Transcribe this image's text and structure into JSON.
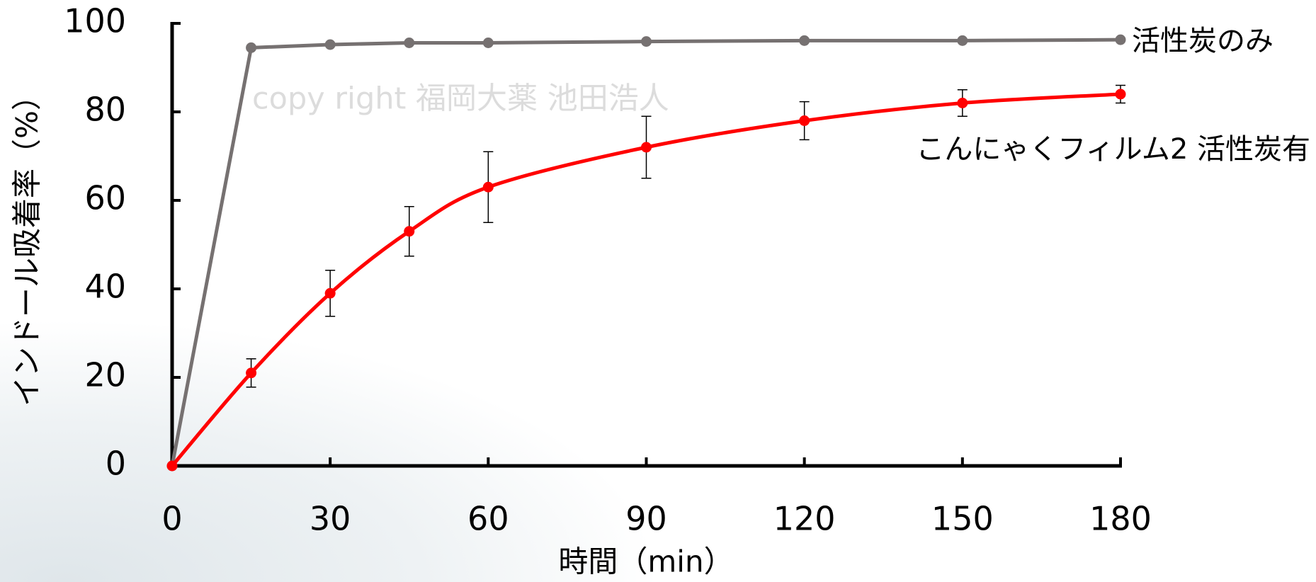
{
  "chart_data": {
    "type": "line",
    "x_label": "時間（min）",
    "y_label": "インドール吸着率（%）",
    "annotation": "copy right 福岡大薬 池田浩人",
    "x": [
      0,
      15,
      30,
      45,
      60,
      90,
      120,
      150,
      180
    ],
    "series": [
      {
        "name": "活性炭のみ",
        "color": "#767171",
        "smooth": false,
        "values": [
          0,
          94.5,
          95.2,
          95.6,
          95.6,
          95.9,
          96.1,
          96.1,
          96.3
        ]
      },
      {
        "name": "こんにゃくフィルム2 活性炭有",
        "color": "#ff0000",
        "smooth": true,
        "values": [
          0,
          21,
          39,
          53,
          63,
          72,
          78,
          82,
          84
        ],
        "errors": [
          0,
          3.2,
          5.2,
          5.6,
          8,
          7,
          4.3,
          3,
          2
        ]
      }
    ],
    "xlim": [
      0,
      180
    ],
    "xticks": [
      0,
      30,
      60,
      90,
      120,
      150,
      180
    ],
    "ylim": [
      0,
      100
    ],
    "yticks": [
      0,
      20,
      40,
      60,
      80,
      100
    ]
  }
}
